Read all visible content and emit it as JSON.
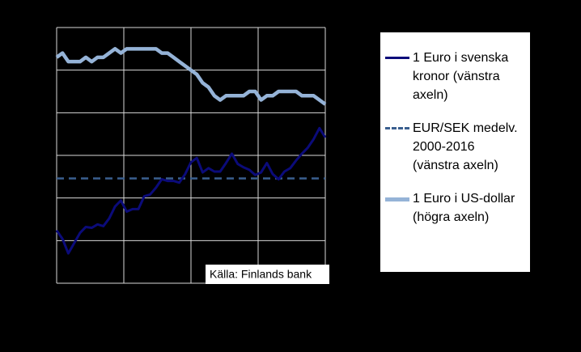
{
  "chart_data": {
    "type": "line",
    "x": [
      0,
      1,
      2,
      3,
      4,
      5,
      6,
      7,
      8,
      9,
      10,
      11,
      12,
      13,
      14,
      15,
      16,
      17,
      18,
      19,
      20,
      21,
      22,
      23,
      24,
      25,
      26,
      27,
      28,
      29,
      30,
      31,
      32,
      33,
      34,
      35,
      36,
      37,
      38,
      39,
      40,
      41,
      42,
      43,
      44,
      45,
      46
    ],
    "xlim": [
      0,
      46
    ],
    "xticks": [
      11.5,
      23,
      34.5
    ],
    "ylim": [
      8,
      11
    ],
    "yticks": [
      8,
      8.5,
      9,
      9.5,
      10,
      10.5,
      11
    ],
    "y2lim": [
      0.9,
      1.5
    ],
    "series": [
      {
        "name": "1  Euro i svenska kronor (vänstra axeln)",
        "color": "#0b0b7a",
        "values": [
          8.62,
          8.52,
          8.35,
          8.47,
          8.59,
          8.66,
          8.65,
          8.69,
          8.67,
          8.76,
          8.9,
          8.97,
          8.84,
          8.87,
          8.87,
          9.02,
          9.04,
          9.12,
          9.22,
          9.2,
          9.2,
          9.18,
          9.28,
          9.42,
          9.47,
          9.3,
          9.35,
          9.31,
          9.31,
          9.41,
          9.52,
          9.4,
          9.36,
          9.33,
          9.27,
          9.3,
          9.41,
          9.28,
          9.22,
          9.31,
          9.35,
          9.44,
          9.52,
          9.59,
          9.69,
          9.82,
          9.71
        ]
      },
      {
        "name": "1  Euro i US-dollar (högra axeln)",
        "color": "#95b3d7",
        "axis": "y2",
        "values": [
          1.43,
          1.44,
          1.42,
          1.42,
          1.42,
          1.43,
          1.42,
          1.43,
          1.43,
          1.44,
          1.45,
          1.44,
          1.45,
          1.45,
          1.45,
          1.45,
          1.45,
          1.45,
          1.44,
          1.44,
          1.43,
          1.42,
          1.41,
          1.4,
          1.39,
          1.37,
          1.36,
          1.34,
          1.33,
          1.34,
          1.34,
          1.34,
          1.34,
          1.35,
          1.35,
          1.33,
          1.34,
          1.34,
          1.35,
          1.35,
          1.35,
          1.35,
          1.34,
          1.34,
          1.34,
          1.33,
          1.32
        ]
      }
    ],
    "reference_line": {
      "name": "EUR/SEK medelv. 2000-2016 (vänstra axeln)",
      "value": 9.23,
      "color": "#3a5f8f"
    },
    "annotation": "Källa: Finlands bank",
    "grid": true
  }
}
